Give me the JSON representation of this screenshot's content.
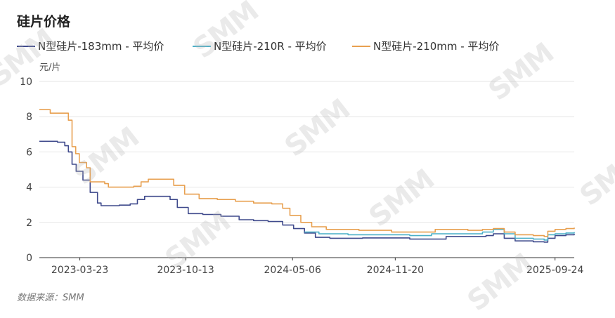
{
  "title": "硅片价格",
  "unit": "元/片",
  "source": "数据来源：SMM",
  "watermark": "SMM",
  "chart_data": {
    "type": "line",
    "title": "硅片价格",
    "ylabel": "元/片",
    "ylim": [
      0,
      10
    ],
    "yticks": [
      "0",
      "2",
      "4",
      "6",
      "8",
      "10"
    ],
    "grid": true,
    "legend_position": "top-left",
    "x_range": [
      "2023-01-04",
      "2025-10-31"
    ],
    "xtick_labels": [
      "2023-03-23",
      "2023-10-13",
      "2024-05-06",
      "2024-11-20",
      "2025-09-24"
    ],
    "series": [
      {
        "name": "N型硅片-183mm - 平均价",
        "color": "#3f4a8c",
        "points": [
          [
            "2023-01-04",
            6.6
          ],
          [
            "2023-01-25",
            6.6
          ],
          [
            "2023-02-08",
            6.55
          ],
          [
            "2023-02-22",
            6.35
          ],
          [
            "2023-03-01",
            6.0
          ],
          [
            "2023-03-08",
            5.3
          ],
          [
            "2023-03-16",
            4.9
          ],
          [
            "2023-03-29",
            4.4
          ],
          [
            "2023-04-12",
            3.7
          ],
          [
            "2023-04-26",
            3.1
          ],
          [
            "2023-05-03",
            2.95
          ],
          [
            "2023-06-07",
            2.98
          ],
          [
            "2023-06-28",
            3.05
          ],
          [
            "2023-07-12",
            3.3
          ],
          [
            "2023-07-26",
            3.48
          ],
          [
            "2023-08-30",
            3.48
          ],
          [
            "2023-09-13",
            3.3
          ],
          [
            "2023-09-27",
            2.85
          ],
          [
            "2023-10-18",
            2.5
          ],
          [
            "2023-11-15",
            2.45
          ],
          [
            "2023-12-20",
            2.35
          ],
          [
            "2024-01-24",
            2.15
          ],
          [
            "2024-02-21",
            2.1
          ],
          [
            "2024-03-20",
            2.05
          ],
          [
            "2024-04-17",
            1.85
          ],
          [
            "2024-05-08",
            1.65
          ],
          [
            "2024-05-29",
            1.4
          ],
          [
            "2024-06-19",
            1.15
          ],
          [
            "2024-07-17",
            1.1
          ],
          [
            "2024-09-18",
            1.12
          ],
          [
            "2024-12-18",
            1.05
          ],
          [
            "2025-01-22",
            1.05
          ],
          [
            "2025-02-26",
            1.2
          ],
          [
            "2025-04-09",
            1.2
          ],
          [
            "2025-05-14",
            1.25
          ],
          [
            "2025-05-28",
            1.35
          ],
          [
            "2025-06-18",
            1.1
          ],
          [
            "2025-07-09",
            0.95
          ],
          [
            "2025-08-13",
            0.9
          ],
          [
            "2025-09-03",
            0.88
          ],
          [
            "2025-09-10",
            1.1
          ],
          [
            "2025-09-24",
            1.25
          ],
          [
            "2025-10-15",
            1.3
          ],
          [
            "2025-10-31",
            1.35
          ]
        ]
      },
      {
        "name": "N型硅片-210R - 平均价",
        "color": "#4cb0c8",
        "points": [
          [
            "2024-05-29",
            1.45
          ],
          [
            "2024-06-26",
            1.35
          ],
          [
            "2024-08-21",
            1.3
          ],
          [
            "2024-10-16",
            1.3
          ],
          [
            "2024-12-18",
            1.25
          ],
          [
            "2025-01-29",
            1.35
          ],
          [
            "2025-03-19",
            1.35
          ],
          [
            "2025-05-07",
            1.45
          ],
          [
            "2025-05-28",
            1.6
          ],
          [
            "2025-06-18",
            1.35
          ],
          [
            "2025-07-09",
            1.1
          ],
          [
            "2025-08-13",
            1.05
          ],
          [
            "2025-09-03",
            1.0
          ],
          [
            "2025-09-10",
            1.3
          ],
          [
            "2025-09-24",
            1.35
          ],
          [
            "2025-10-15",
            1.4
          ],
          [
            "2025-10-31",
            1.45
          ]
        ]
      },
      {
        "name": "N型硅片-210mm - 平均价",
        "color": "#e8a050",
        "points": [
          [
            "2023-01-04",
            8.4
          ],
          [
            "2023-01-18",
            8.4
          ],
          [
            "2023-01-25",
            8.2
          ],
          [
            "2023-02-22",
            8.2
          ],
          [
            "2023-03-01",
            7.8
          ],
          [
            "2023-03-08",
            6.3
          ],
          [
            "2023-03-15",
            5.9
          ],
          [
            "2023-03-22",
            5.4
          ],
          [
            "2023-04-05",
            5.1
          ],
          [
            "2023-04-12",
            4.3
          ],
          [
            "2023-05-10",
            4.2
          ],
          [
            "2023-05-17",
            4.0
          ],
          [
            "2023-06-21",
            4.0
          ],
          [
            "2023-07-05",
            4.05
          ],
          [
            "2023-07-19",
            4.3
          ],
          [
            "2023-08-02",
            4.45
          ],
          [
            "2023-09-06",
            4.45
          ],
          [
            "2023-09-20",
            4.1
          ],
          [
            "2023-10-11",
            3.6
          ],
          [
            "2023-11-08",
            3.35
          ],
          [
            "2023-12-13",
            3.3
          ],
          [
            "2024-01-17",
            3.2
          ],
          [
            "2024-02-21",
            3.1
          ],
          [
            "2024-03-27",
            3.05
          ],
          [
            "2024-04-17",
            2.8
          ],
          [
            "2024-05-01",
            2.4
          ],
          [
            "2024-05-22",
            2.0
          ],
          [
            "2024-06-12",
            1.75
          ],
          [
            "2024-07-10",
            1.6
          ],
          [
            "2024-09-11",
            1.55
          ],
          [
            "2024-11-13",
            1.45
          ],
          [
            "2025-01-08",
            1.45
          ],
          [
            "2025-02-05",
            1.6
          ],
          [
            "2025-04-09",
            1.55
          ],
          [
            "2025-05-07",
            1.6
          ],
          [
            "2025-05-28",
            1.65
          ],
          [
            "2025-06-18",
            1.45
          ],
          [
            "2025-07-09",
            1.3
          ],
          [
            "2025-08-13",
            1.25
          ],
          [
            "2025-09-03",
            1.2
          ],
          [
            "2025-09-10",
            1.5
          ],
          [
            "2025-09-24",
            1.6
          ],
          [
            "2025-10-15",
            1.65
          ],
          [
            "2025-10-31",
            1.7
          ]
        ]
      }
    ]
  }
}
